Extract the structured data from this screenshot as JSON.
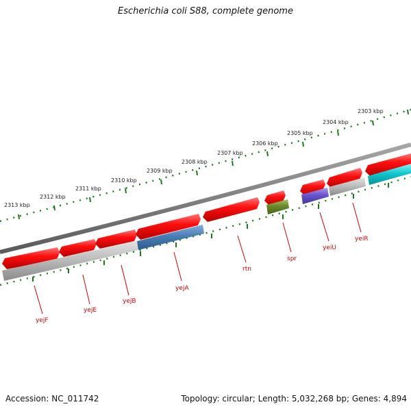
{
  "title": "Escherichia coli S88, complete genome",
  "accession": "Accession: NC_011742",
  "summary": "Topology: circular; Length: 5,032,268 bp; Genes: 4,894",
  "colors": {
    "backbone": "#7a7a7a",
    "ticks": "#1a7a1a",
    "forward_gene": "#ee1111",
    "gene_label": "#cc0000",
    "cog_gray": "#b8b8b8",
    "cog_blue": "#4a7fb5",
    "cog_green": "#6a8a2a",
    "cog_purple": "#6a55cc",
    "cog_cyan": "#11c8d0"
  },
  "scale_labels": [
    "2313 kbp",
    "2312 kbp",
    "2311 kbp",
    "2310 kbp",
    "2309 kbp",
    "2308 kbp",
    "2307 kbp",
    "2306 kbp",
    "2305 kbp",
    "2304 kbp",
    "2303 kbp"
  ],
  "gene_labels": [
    "yejF",
    "yejE",
    "yejB",
    "yejA",
    "rtn",
    "spr",
    "yeiU",
    "yeiR"
  ]
}
